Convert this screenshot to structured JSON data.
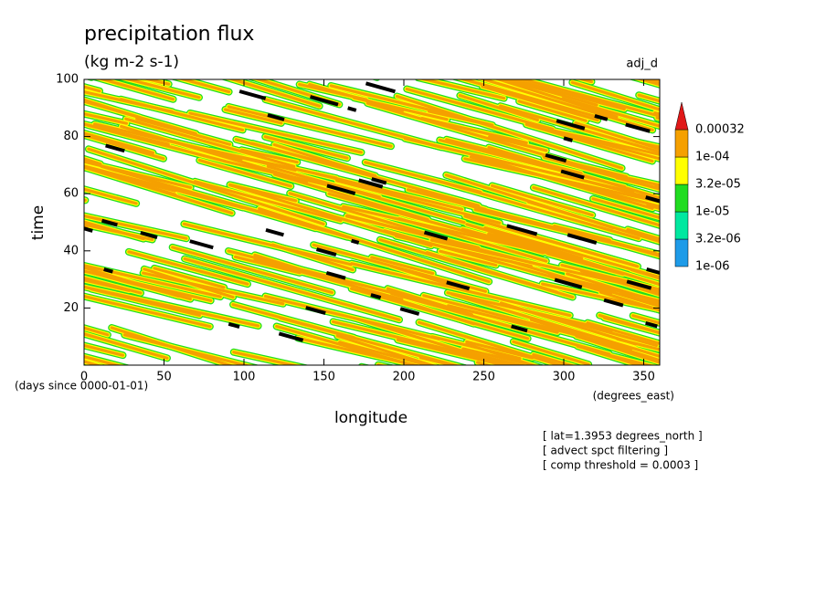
{
  "chart_data": {
    "type": "contour",
    "title": "precipitation flux",
    "subtitle": "(kg m-2 s-1)",
    "dataset_label": "adj_d",
    "x_label": "longitude",
    "x_units": "(degrees_east)",
    "y_label": "time",
    "y_units": "(days since 0000-01-01)",
    "xlim": [
      0,
      360
    ],
    "xticks": [
      0,
      50,
      100,
      150,
      200,
      250,
      300,
      350
    ],
    "ylim": [
      0,
      100
    ],
    "yticks": [
      20,
      40,
      60,
      80,
      100
    ],
    "colorbar": {
      "levels": [
        {
          "value": 1e-06,
          "label": "1e-06"
        },
        {
          "value": 3.2e-06,
          "label": "3.2e-06"
        },
        {
          "value": 1e-05,
          "label": "1e-05"
        },
        {
          "value": 3.2e-05,
          "label": "3.2e-05"
        },
        {
          "value": 0.0001,
          "label": "1e-04"
        },
        0.00032
      ],
      "colors": [
        "#1e9be8",
        "#00e8a0",
        "#20dc20",
        "#ffff00",
        "#f5a000"
      ],
      "extend_color": "#e01818"
    },
    "notes": [
      "[ lat=1.3953 degrees_north ]",
      "[ advect spct filtering ]",
      "[ comp threshold = 0.0003 ]"
    ]
  }
}
